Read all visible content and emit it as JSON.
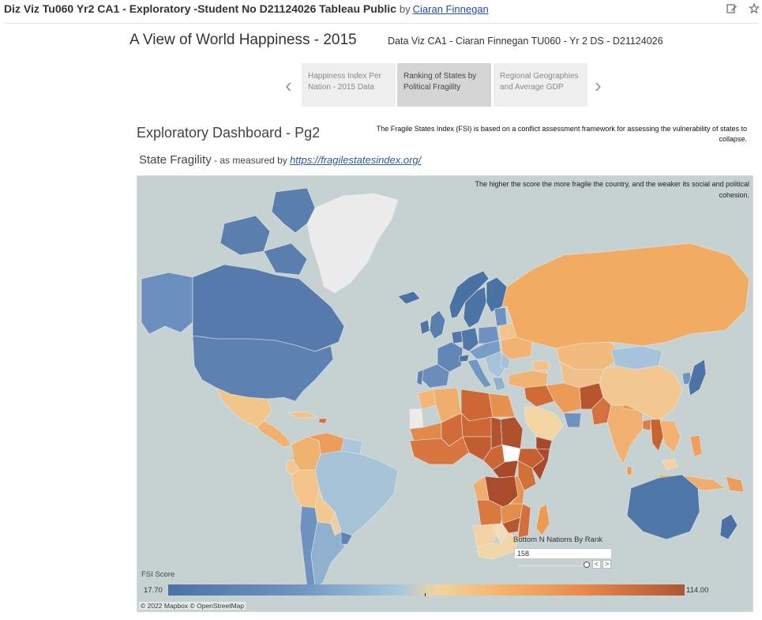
{
  "header": {
    "title": "Diz Viz Tu060 Yr2 CA1 - Exploratory -Student No D21124026 Tableau Public",
    "by": "by",
    "author": "Ciaran Finnegan",
    "icons": [
      "edit-icon",
      "pin-icon"
    ]
  },
  "dashboard": {
    "title": "A View of World Happiness - 2015",
    "subtitle": "Data Viz CA1 - Ciaran Finnegan TU060 - Yr 2 DS - D21124026"
  },
  "story": {
    "prev": "‹",
    "next": "›",
    "tabs": [
      {
        "label": "Happiness Index Per Nation - 2015 Data",
        "active": false
      },
      {
        "label": "Ranking of States by Political Fragility",
        "active": true
      },
      {
        "label": "Regional Geographies and Average GDP",
        "active": false
      }
    ]
  },
  "page": {
    "title": "Exploratory Dashboard - Pg2",
    "fsi_note": "The Fragile States Index (FSI) is based on a conflict assessment framework for assessing the vulnerability of states to collapse.",
    "section_title": "State Fragility",
    "section_sub": " - as measured by ",
    "section_link": "https://fragilestatesindex.org/"
  },
  "map": {
    "note": "The higher the score the more fragile the country, and the weaker its social and political cohesion.",
    "legend_title": "FSI Score",
    "legend_min": "17.70",
    "legend_max": "114.00",
    "attribution": "© 2022 Mapbox  © OpenStreetMap",
    "colors": {
      "ocean": "#c6d1d1",
      "nodata": "#ececec",
      "low": "#4b72a4",
      "mid": "#f2d49e",
      "high": "#b05535"
    }
  },
  "bottom_n": {
    "label": "Bottom N Nations By Rank",
    "value": "158",
    "prev": "<",
    "next": ">"
  }
}
